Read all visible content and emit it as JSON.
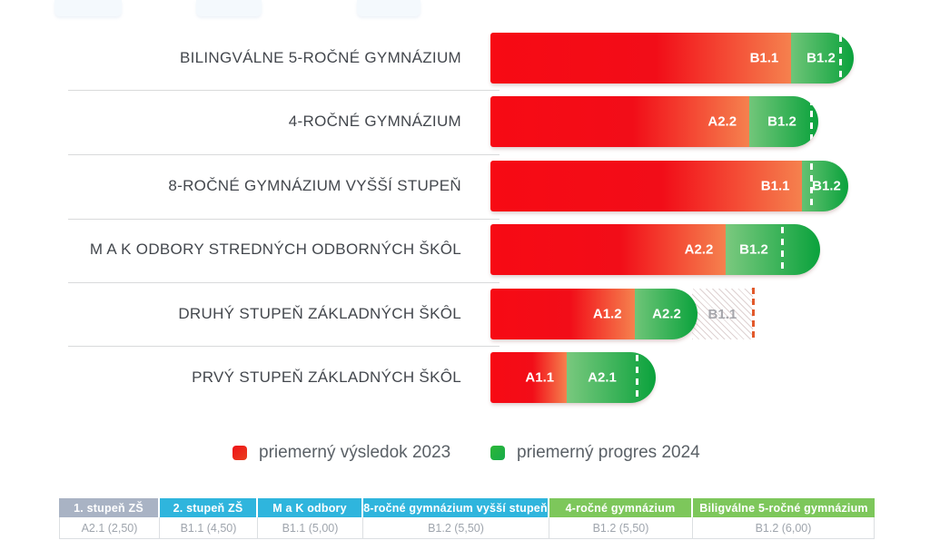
{
  "chart_data": {
    "type": "bar",
    "orientation": "horizontal",
    "title": "",
    "xlabel": "",
    "ylabel": "",
    "xlim": [
      0,
      6.6
    ],
    "grid": false,
    "legend_position": "bottom",
    "categories": [
      "BILINGVÁLNE 5-ROČNÉ GYMNÁZIUM",
      "4-ROČNÉ GYMNÁZIUM",
      "8-ROČNÉ GYMNÁZIUM VYŠŠÍ STUPEŇ",
      "M A K ODBORY STREDNÝCH ODBORNÝCH ŠKÔL",
      "DRUHÝ STUPEŇ ZÁKLADNÝCH ŠKÔL",
      "PRVÝ STUPEŇ ZÁKLADNÝCH ŠKÔL"
    ],
    "series": [
      {
        "name": "priemerný výsledok 2023",
        "color": "#ed1c24",
        "values": [
          5.16,
          4.44,
          5.35,
          4.04,
          2.47,
          1.31
        ],
        "levels": [
          "B1.1",
          "A2.2",
          "B1.1",
          "A2.2",
          "A1.2",
          "A1.1"
        ]
      },
      {
        "name": "priemerný progres 2024",
        "color": "#23b14d",
        "values": [
          1.07,
          1.18,
          0.79,
          1.62,
          1.08,
          1.53
        ],
        "levels": [
          "B1.2",
          "B1.2",
          "B1.2",
          "B1.2",
          "A2.2",
          "A2.1"
        ]
      }
    ],
    "targets": {
      "values": [
        6.0,
        5.5,
        5.5,
        5.0,
        4.5,
        2.5
      ],
      "levels": [
        "B1.2",
        "B1.2",
        "B1.2",
        "B1.1",
        "B1.1",
        "A2.1"
      ],
      "reached": [
        true,
        true,
        true,
        true,
        false,
        true
      ]
    }
  },
  "rows": [
    {
      "category": "BILINGVÁLNE 5-ROČNÉ GYMNÁZIUM",
      "result_level": "B1.1",
      "result_display": "5,16",
      "result": 5.16,
      "progres_level": "B1.2",
      "progres_display": "1,07",
      "progres": 1.07,
      "target": 6.0,
      "target_reached": true
    },
    {
      "category": "4-ROČNÉ GYMNÁZIUM",
      "result_level": "A2.2",
      "result_display": "4,44",
      "result": 4.44,
      "progres_level": "B1.2",
      "progres_display": "1,18",
      "progres": 1.18,
      "target": 5.5,
      "target_reached": true
    },
    {
      "category": "8-ROČNÉ GYMNÁZIUM VYŠŠÍ STUPEŇ",
      "result_level": "B1.1",
      "result_display": "5,35",
      "result": 5.35,
      "progres_level": "B1.2",
      "progres_display": "0,79",
      "progres": 0.79,
      "target": 5.5,
      "target_reached": true
    },
    {
      "category": "M A K ODBORY STREDNÝCH ODBORNÝCH ŠKÔL",
      "result_level": "A2.2",
      "result_display": "4,04",
      "result": 4.04,
      "progres_level": "B1.2",
      "progres_display": "1,62",
      "progres": 1.62,
      "target": 5.0,
      "target_reached": true
    },
    {
      "category": "DRUHÝ STUPEŇ ZÁKLADNÝCH ŠKÔL",
      "result_level": "A1.2",
      "result_display": "2,47",
      "result": 2.47,
      "progres_level": "A2.2",
      "progres_display": "1,08",
      "progres": 1.08,
      "target": 4.5,
      "target_reached": false,
      "gap_level": "B1.1",
      "gap_display": "4,50"
    },
    {
      "category": "PRVÝ STUPEŇ ZÁKLADNÝCH ŠKÔL",
      "result_level": "A1.1",
      "result_display": "1,31",
      "result": 1.31,
      "progres_level": "A2.1",
      "progres_display": "1,53",
      "progres": 1.53,
      "target": 2.5,
      "target_reached": true
    }
  ],
  "legend": {
    "result": {
      "label": "priemerný výsledok 2023",
      "color": "#ea1e23"
    },
    "progres": {
      "label": "priemerný progres 2024",
      "color": "#23b14d"
    }
  },
  "footer_table": {
    "columns": [
      {
        "header": "1. stupeň ZŠ",
        "value": "A2.1 (2,50)",
        "header_color": "#a9b3c4"
      },
      {
        "header": "2. stupeň ZŠ",
        "value": "B1.1 (4,50)",
        "header_color": "#2fb5dd"
      },
      {
        "header": "M a K odbory",
        "value": "B1.1 (5,00)",
        "header_color": "#2fb5dd"
      },
      {
        "header": "8-ročné gymnázium vyšší stupeň",
        "value": "B1.2 (5,50)",
        "header_color": "#2fb5dd"
      },
      {
        "header": "4-ročné gymnázium",
        "value": "B1.2 (5,50)",
        "header_color": "#7dc75b"
      },
      {
        "header": "Biligválne 5-ročné gymnázium",
        "value": "B1.2 (6,00)",
        "header_color": "#7dc75b"
      }
    ]
  }
}
